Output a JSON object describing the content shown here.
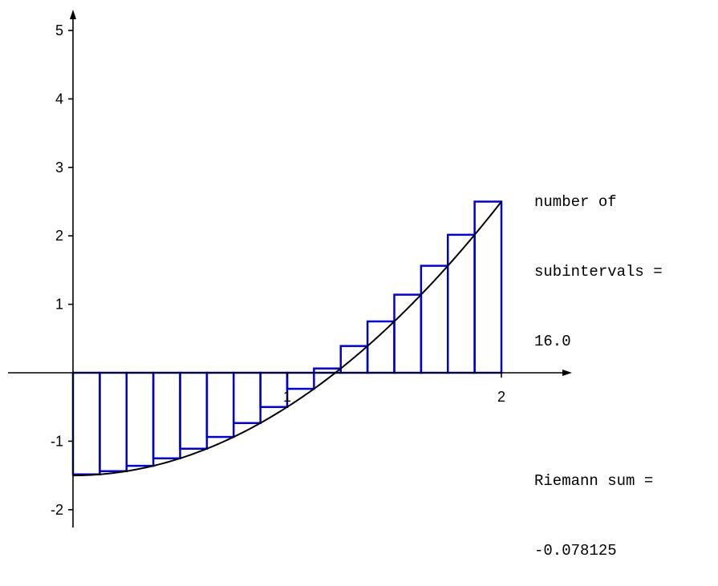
{
  "chart_data": {
    "type": "bar",
    "title": "",
    "function_curve": {
      "color": "#000000",
      "samples": [
        [
          0.0,
          -1.5
        ],
        [
          0.125,
          -1.4844
        ],
        [
          0.25,
          -1.4375
        ],
        [
          0.375,
          -1.3594
        ],
        [
          0.5,
          -1.25
        ],
        [
          0.625,
          -1.1094
        ],
        [
          0.75,
          -0.9375
        ],
        [
          0.875,
          -0.7344
        ],
        [
          1.0,
          -0.5
        ],
        [
          1.125,
          -0.2344
        ],
        [
          1.25,
          0.0625
        ],
        [
          1.375,
          0.3906
        ],
        [
          1.5,
          0.75
        ],
        [
          1.625,
          1.1406
        ],
        [
          1.75,
          1.5625
        ],
        [
          1.875,
          2.0156
        ],
        [
          2.0,
          2.5
        ]
      ]
    },
    "rectangles": {
      "color": "#0000cc",
      "x_left": [
        0.0,
        0.125,
        0.25,
        0.375,
        0.5,
        0.625,
        0.75,
        0.875,
        1.0,
        1.125,
        1.25,
        1.375,
        1.5,
        1.625,
        1.75,
        1.875
      ],
      "width": 0.125,
      "heights": [
        -1.4844,
        -1.4375,
        -1.3594,
        -1.25,
        -1.1094,
        -0.9375,
        -0.7344,
        -0.5,
        -0.2344,
        0.0625,
        0.3906,
        0.75,
        1.1406,
        1.5625,
        2.0156,
        2.5
      ]
    },
    "xlim": [
      -0.3,
      2.3
    ],
    "ylim": [
      -2.2,
      5.5
    ],
    "x_ticks": [
      1,
      2
    ],
    "x_tick_labels": [
      "1",
      "2"
    ],
    "y_ticks": [
      5,
      4,
      3,
      2,
      1,
      -1,
      -2
    ],
    "y_tick_labels": [
      "5",
      "4",
      "3",
      "2",
      "1",
      "-1",
      "-2"
    ],
    "grid": false
  },
  "info": {
    "line1": "number of",
    "line2": "subintervals =",
    "line3": "16.0",
    "line4": "Riemann sum =",
    "line5": "-0.078125"
  }
}
